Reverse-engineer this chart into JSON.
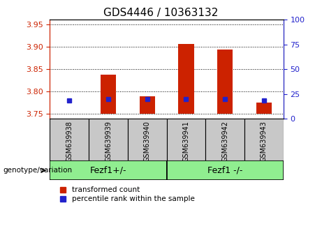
{
  "title": "GDS4446 / 10363132",
  "samples": [
    "GSM639938",
    "GSM639939",
    "GSM639940",
    "GSM639941",
    "GSM639942",
    "GSM639943"
  ],
  "group_labels": [
    "Fezf1+/-",
    "Fezf1 -/-"
  ],
  "group_sizes": [
    3,
    3
  ],
  "transformed_count": [
    3.751,
    3.838,
    3.79,
    3.906,
    3.893,
    3.775
  ],
  "percentile_rank": [
    18,
    20,
    20,
    20,
    20,
    18
  ],
  "ylim_left": [
    3.74,
    3.96
  ],
  "ylim_right": [
    0,
    100
  ],
  "yticks_left": [
    3.75,
    3.8,
    3.85,
    3.9,
    3.95
  ],
  "yticks_right": [
    0,
    25,
    50,
    75,
    100
  ],
  "bar_bottom": 3.75,
  "red_color": "#cc2200",
  "blue_color": "#2222cc",
  "label_bg": "#c8c8c8",
  "group_bg": "#90ee90",
  "legend_items": [
    "transformed count",
    "percentile rank within the sample"
  ],
  "genotype_label": "genotype/variation",
  "title_fontsize": 11,
  "tick_fontsize": 8,
  "legend_fontsize": 7.5,
  "sample_fontsize": 7,
  "group_fontsize": 9
}
